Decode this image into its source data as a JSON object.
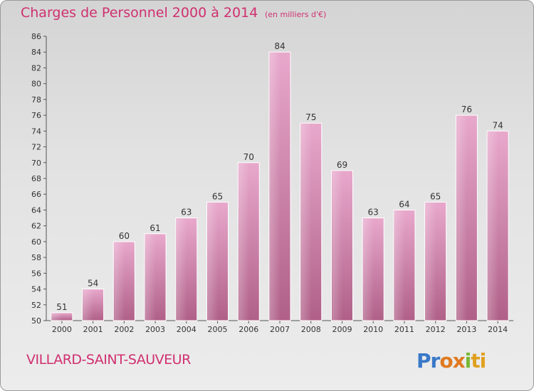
{
  "header": {
    "title": "Charges de Personnel 2000 à 2014",
    "subtitle": "(en milliers d'€)"
  },
  "footer": {
    "commune": "VILLARD-SAINT-SAUVEUR",
    "logo": {
      "text": "Proxiti",
      "colors": [
        "#3a78c8",
        "#e07a20",
        "#79b832",
        "#e0a020"
      ]
    }
  },
  "chart_data": {
    "type": "bar",
    "title": "Charges de Personnel 2000 à 2014",
    "subtitle": "(en milliers d'€)",
    "xlabel": "",
    "ylabel": "",
    "categories": [
      "2000",
      "2001",
      "2002",
      "2003",
      "2004",
      "2005",
      "2006",
      "2007",
      "2008",
      "2009",
      "2010",
      "2011",
      "2012",
      "2013",
      "2014"
    ],
    "values": [
      51,
      54,
      60,
      61,
      63,
      65,
      70,
      84,
      75,
      69,
      63,
      64,
      65,
      76,
      74
    ],
    "ylim": [
      50,
      86
    ],
    "yticks": [
      50,
      52,
      54,
      56,
      58,
      60,
      62,
      64,
      66,
      68,
      70,
      72,
      74,
      76,
      78,
      80,
      82,
      84,
      86
    ],
    "grid": false,
    "legend": "none",
    "bar_color": "#c86e9c"
  }
}
